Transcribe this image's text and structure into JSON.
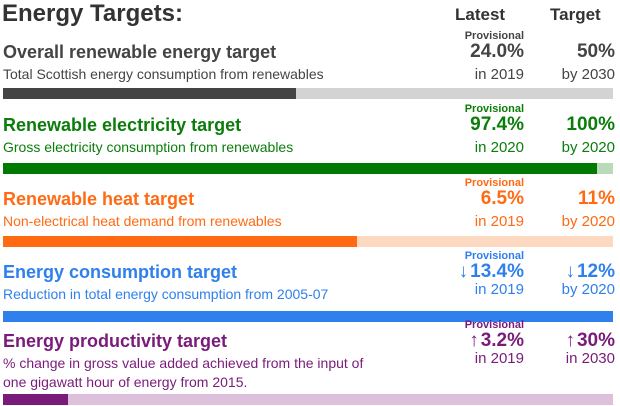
{
  "title": "Energy Targets:",
  "columns": {
    "latest": "Latest",
    "target": "Target"
  },
  "sections": [
    {
      "title": "Overall renewable energy target",
      "subtitle": "Total Scottish energy consumption from renewables",
      "provisional": "Provisional",
      "latest": "24.0%",
      "latest_year": "in 2019",
      "target": "50%",
      "target_year": "by 2030",
      "progress": 0.48,
      "color": "#444444",
      "track": "#d3d3d3",
      "text_color": "#444444"
    },
    {
      "title": "Renewable electricity target",
      "subtitle": "Gross electricity consumption from renewables",
      "provisional": "Provisional",
      "latest": "97.4%",
      "latest_year": "in 2020",
      "target": "100%",
      "target_year": "by 2020",
      "progress": 0.974,
      "color": "#007a00",
      "track": "#b9dbb9",
      "text_color": "#0b7d0b"
    },
    {
      "title": "Renewable heat target",
      "subtitle": "Non-electrical heat demand from renewables",
      "provisional": "Provisional",
      "latest": "6.5%",
      "latest_year": "in 2019",
      "target": "11%",
      "target_year": "by 2020",
      "progress": 0.58,
      "color": "#ff6a13",
      "track": "#fdd9c2",
      "text_color": "#ff6a13"
    },
    {
      "title": "Energy consumption target",
      "subtitle": "Reduction in total energy consumption from 2005-07",
      "provisional": "Provisional",
      "latest": "13.4%",
      "latest_year": "in 2019",
      "target": "12%",
      "target_year": "by 2020",
      "arrow": "↓",
      "progress": 1.0,
      "color": "#2f80ed",
      "track": "#bcd6fa",
      "text_color": "#2f80ed"
    },
    {
      "title": "Energy productivity target",
      "subtitle": "% change in gross value added achieved from the input of one gigawatt hour of energy from 2015.",
      "provisional": "Provisional",
      "latest": "3.2%",
      "latest_year": "in 2019",
      "target": "30%",
      "target_year": "in 2030",
      "arrow": "↑",
      "progress": 0.107,
      "color": "#7a1b7a",
      "track": "#dcc0dc",
      "text_color": "#7a1b7a"
    }
  ]
}
